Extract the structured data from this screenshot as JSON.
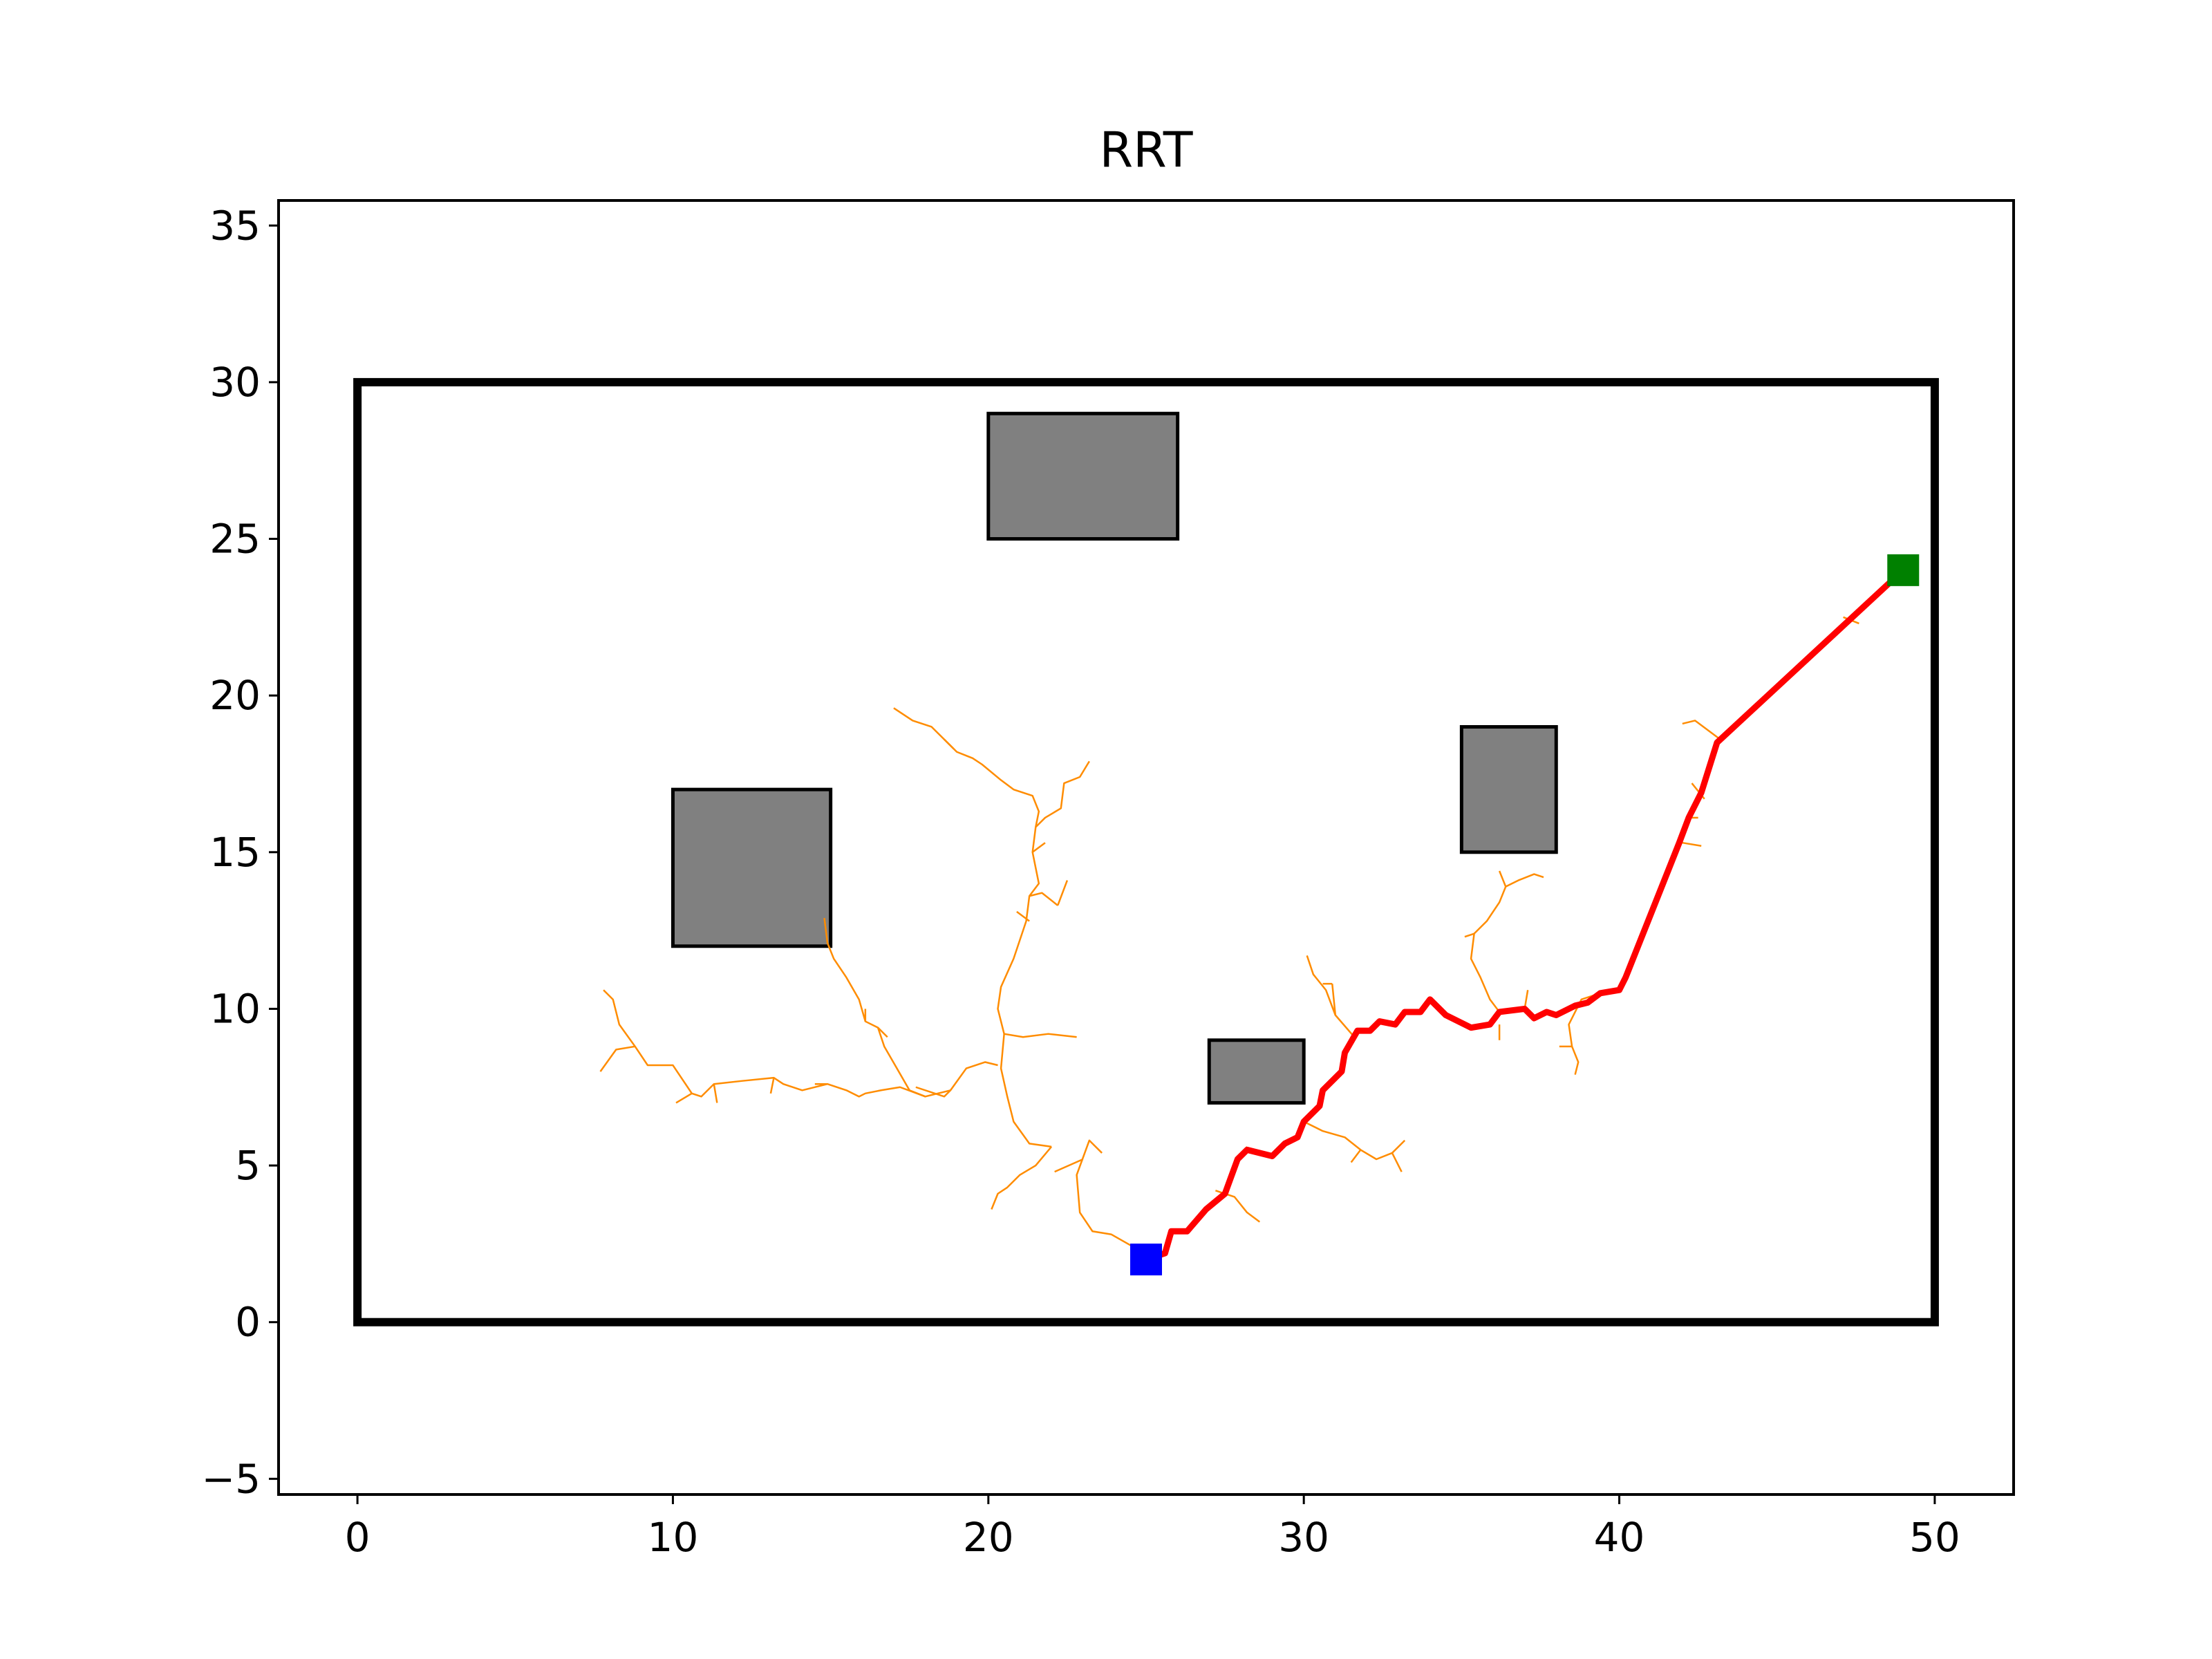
{
  "chart_data": {
    "type": "scatter",
    "title": "RRT",
    "xlabel": "",
    "ylabel": "",
    "xlim": [
      -2.5,
      52.5
    ],
    "ylim": [
      -5.5,
      35.8
    ],
    "x_ticks": [
      0,
      10,
      20,
      30,
      40,
      50
    ],
    "y_ticks": [
      -5,
      0,
      5,
      10,
      15,
      20,
      25,
      30,
      35
    ],
    "x_tick_labels": [
      "0",
      "10",
      "20",
      "30",
      "40",
      "50"
    ],
    "y_tick_labels": [
      "−5",
      "0",
      "5",
      "10",
      "15",
      "20",
      "25",
      "30",
      "35"
    ],
    "grid": false,
    "colors": {
      "tree": "#ff8c00",
      "path": "#ff0000",
      "obstacle_fill": "#808080",
      "boundary": "#000000",
      "start": "#0000ff",
      "goal": "#008000"
    },
    "boundary": {
      "x0": 0,
      "y0": 0,
      "x1": 50,
      "y1": 30
    },
    "obstacles": [
      {
        "x": 20,
        "y": 25,
        "w": 6,
        "h": 4
      },
      {
        "x": 10,
        "y": 12,
        "w": 5,
        "h": 5
      },
      {
        "x": 27,
        "y": 7,
        "w": 3,
        "h": 2
      },
      {
        "x": 35,
        "y": 15,
        "w": 3,
        "h": 4
      }
    ],
    "start": [
      25,
      2
    ],
    "goal": [
      49,
      24
    ],
    "path": [
      [
        25,
        2
      ],
      [
        25.6,
        2.2
      ],
      [
        25.8,
        2.9
      ],
      [
        26.3,
        2.9
      ],
      [
        26.9,
        3.6
      ],
      [
        27.5,
        4.1
      ],
      [
        27.9,
        5.2
      ],
      [
        28.2,
        5.5
      ],
      [
        29.0,
        5.3
      ],
      [
        29.4,
        5.7
      ],
      [
        29.8,
        5.9
      ],
      [
        30.0,
        6.4
      ],
      [
        30.5,
        6.9
      ],
      [
        30.6,
        7.4
      ],
      [
        31.2,
        8.0
      ],
      [
        31.3,
        8.6
      ],
      [
        31.7,
        9.3
      ],
      [
        32.1,
        9.3
      ],
      [
        32.4,
        9.6
      ],
      [
        32.9,
        9.5
      ],
      [
        33.2,
        9.9
      ],
      [
        33.7,
        9.9
      ],
      [
        34.0,
        10.3
      ],
      [
        34.5,
        9.8
      ],
      [
        35.3,
        9.4
      ],
      [
        35.9,
        9.5
      ],
      [
        36.2,
        9.9
      ],
      [
        37.0,
        10.0
      ],
      [
        37.3,
        9.7
      ],
      [
        37.7,
        9.9
      ],
      [
        38.0,
        9.8
      ],
      [
        38.6,
        10.1
      ],
      [
        39.0,
        10.2
      ],
      [
        39.4,
        10.5
      ],
      [
        40.0,
        10.6
      ],
      [
        40.2,
        11.0
      ],
      [
        41.9,
        15.3
      ],
      [
        42.2,
        16.1
      ],
      [
        42.6,
        16.9
      ],
      [
        43.1,
        18.5
      ],
      [
        49.0,
        24.0
      ]
    ],
    "tree": [
      [
        [
          25,
          2
        ],
        [
          24.6,
          2.4
        ],
        [
          23.9,
          2.8
        ],
        [
          23.3,
          2.9
        ],
        [
          22.9,
          3.5
        ],
        [
          22.8,
          4.7
        ],
        [
          23.2,
          5.8
        ],
        [
          23.6,
          5.4
        ]
      ],
      [
        [
          23.0,
          5.2
        ],
        [
          22.1,
          4.8
        ]
      ],
      [
        [
          22.0,
          5.6
        ],
        [
          21.3,
          5.7
        ],
        [
          20.8,
          6.4
        ],
        [
          20.6,
          7.2
        ],
        [
          20.4,
          8.1
        ],
        [
          20.5,
          9.2
        ],
        [
          20.3,
          10.0
        ],
        [
          20.4,
          10.7
        ],
        [
          20.8,
          11.6
        ],
        [
          21.2,
          12.8
        ],
        [
          21.3,
          13.6
        ],
        [
          21.6,
          14.0
        ],
        [
          21.4,
          15.0
        ],
        [
          21.5,
          15.8
        ],
        [
          21.8,
          16.1
        ],
        [
          22.3,
          16.4
        ],
        [
          22.4,
          17.2
        ],
        [
          22.9,
          17.4
        ],
        [
          23.2,
          17.9
        ]
      ],
      [
        [
          22.0,
          5.6
        ],
        [
          21.5,
          5.0
        ],
        [
          21.0,
          4.7
        ],
        [
          20.6,
          4.3
        ],
        [
          20.3,
          4.1
        ],
        [
          20.1,
          3.6
        ]
      ],
      [
        [
          21.3,
          13.6
        ],
        [
          21.7,
          13.7
        ],
        [
          22.2,
          13.3
        ]
      ],
      [
        [
          22.2,
          13.3
        ],
        [
          22.5,
          14.1
        ]
      ],
      [
        [
          20.5,
          9.2
        ],
        [
          21.1,
          9.1
        ],
        [
          21.9,
          9.2
        ],
        [
          22.8,
          9.1
        ]
      ],
      [
        [
          20.3,
          8.2
        ],
        [
          19.9,
          8.3
        ],
        [
          19.3,
          8.1
        ],
        [
          18.8,
          7.4
        ],
        [
          18.6,
          7.2
        ],
        [
          17.7,
          7.5
        ]
      ],
      [
        [
          18.8,
          7.4
        ],
        [
          18.0,
          7.2
        ],
        [
          17.5,
          7.4
        ],
        [
          17.1,
          8.1
        ],
        [
          16.7,
          8.8
        ],
        [
          16.5,
          9.4
        ],
        [
          16.1,
          9.6
        ],
        [
          15.9,
          10.3
        ],
        [
          15.5,
          11.0
        ],
        [
          15.1,
          11.6
        ],
        [
          14.9,
          12.1
        ],
        [
          14.8,
          12.9
        ]
      ],
      [
        [
          16.5,
          9.4
        ],
        [
          16.8,
          9.1
        ]
      ],
      [
        [
          16.1,
          9.6
        ],
        [
          16.1,
          10.0
        ]
      ],
      [
        [
          18.0,
          7.2
        ],
        [
          17.2,
          7.5
        ],
        [
          16.6,
          7.4
        ],
        [
          16.1,
          7.3
        ],
        [
          15.9,
          7.2
        ],
        [
          15.5,
          7.4
        ],
        [
          14.9,
          7.6
        ],
        [
          14.1,
          7.4
        ],
        [
          13.5,
          7.6
        ],
        [
          13.2,
          7.8
        ],
        [
          12.2,
          7.7
        ],
        [
          11.3,
          7.6
        ],
        [
          10.9,
          7.2
        ],
        [
          10.6,
          7.3
        ],
        [
          10.4,
          7.6
        ],
        [
          10.0,
          8.2
        ],
        [
          9.2,
          8.2
        ],
        [
          8.8,
          8.8
        ],
        [
          8.3,
          9.5
        ],
        [
          8.1,
          10.3
        ],
        [
          7.8,
          10.6
        ]
      ],
      [
        [
          8.8,
          8.8
        ],
        [
          8.2,
          8.7
        ],
        [
          7.7,
          8.0
        ]
      ],
      [
        [
          10.6,
          7.3
        ],
        [
          10.1,
          7.0
        ]
      ],
      [
        [
          11.3,
          7.6
        ],
        [
          11.4,
          7.0
        ]
      ],
      [
        [
          13.2,
          7.8
        ],
        [
          13.1,
          7.3
        ]
      ],
      [
        [
          14.9,
          7.6
        ],
        [
          14.5,
          7.6
        ]
      ],
      [
        [
          21.5,
          15.8
        ],
        [
          21.6,
          16.3
        ],
        [
          21.4,
          16.8
        ],
        [
          20.8,
          17.0
        ],
        [
          20.4,
          17.3
        ],
        [
          19.8,
          17.8
        ],
        [
          19.5,
          18.0
        ],
        [
          19.0,
          18.2
        ],
        [
          18.6,
          18.6
        ],
        [
          18.2,
          19.0
        ],
        [
          17.6,
          19.2
        ],
        [
          17.0,
          19.6
        ]
      ],
      [
        [
          18.6,
          18.6
        ],
        [
          18.9,
          18.3
        ]
      ],
      [
        [
          21.3,
          12.8
        ],
        [
          20.9,
          13.1
        ]
      ],
      [
        [
          21.4,
          15.0
        ],
        [
          21.8,
          15.3
        ]
      ],
      [
        [
          27.2,
          4.2
        ],
        [
          27.8,
          4.0
        ],
        [
          28.2,
          3.5
        ],
        [
          28.6,
          3.2
        ]
      ],
      [
        [
          27.9,
          5.2
        ],
        [
          28.2,
          5.6
        ]
      ],
      [
        [
          30.0,
          6.4
        ],
        [
          30.6,
          6.1
        ],
        [
          31.3,
          5.9
        ],
        [
          31.8,
          5.5
        ],
        [
          32.3,
          5.2
        ],
        [
          32.8,
          5.4
        ],
        [
          33.2,
          5.8
        ]
      ],
      [
        [
          31.8,
          5.5
        ],
        [
          31.5,
          5.1
        ]
      ],
      [
        [
          32.8,
          5.4
        ],
        [
          33.1,
          4.8
        ]
      ],
      [
        [
          31.6,
          9.1
        ],
        [
          31.0,
          9.8
        ],
        [
          30.9,
          10.8
        ]
      ],
      [
        [
          31.0,
          9.8
        ],
        [
          30.7,
          10.6
        ],
        [
          30.3,
          11.1
        ],
        [
          30.1,
          11.7
        ]
      ],
      [
        [
          30.9,
          10.8
        ],
        [
          30.6,
          10.8
        ]
      ],
      [
        [
          36.2,
          9.9
        ],
        [
          35.9,
          10.3
        ],
        [
          35.6,
          11.0
        ],
        [
          35.3,
          11.6
        ],
        [
          35.4,
          12.4
        ],
        [
          35.8,
          12.8
        ],
        [
          36.2,
          13.4
        ],
        [
          36.4,
          13.9
        ],
        [
          36.8,
          14.1
        ],
        [
          37.3,
          14.3
        ],
        [
          37.6,
          14.2
        ]
      ],
      [
        [
          36.4,
          13.9
        ],
        [
          36.2,
          14.4
        ]
      ],
      [
        [
          35.4,
          12.4
        ],
        [
          35.1,
          12.3
        ]
      ],
      [
        [
          37.0,
          10.0
        ],
        [
          37.1,
          10.6
        ]
      ],
      [
        [
          36.2,
          9.5
        ],
        [
          36.2,
          9.0
        ]
      ],
      [
        [
          39.4,
          10.5
        ],
        [
          38.8,
          10.3
        ],
        [
          38.4,
          9.5
        ],
        [
          38.5,
          8.8
        ],
        [
          38.7,
          8.3
        ],
        [
          38.6,
          7.9
        ]
      ],
      [
        [
          38.5,
          8.8
        ],
        [
          38.1,
          8.8
        ]
      ],
      [
        [
          41.0,
          13.2
        ],
        [
          41.4,
          13.9
        ]
      ],
      [
        [
          42.0,
          15.3
        ],
        [
          42.6,
          15.2
        ]
      ],
      [
        [
          42.2,
          16.1
        ],
        [
          42.5,
          16.1
        ]
      ],
      [
        [
          42.7,
          16.7
        ],
        [
          42.3,
          17.2
        ]
      ],
      [
        [
          43.2,
          18.6
        ],
        [
          42.4,
          19.2
        ],
        [
          42.0,
          19.1
        ]
      ],
      [
        [
          47.6,
          22.3
        ],
        [
          47.1,
          22.5
        ]
      ]
    ]
  }
}
